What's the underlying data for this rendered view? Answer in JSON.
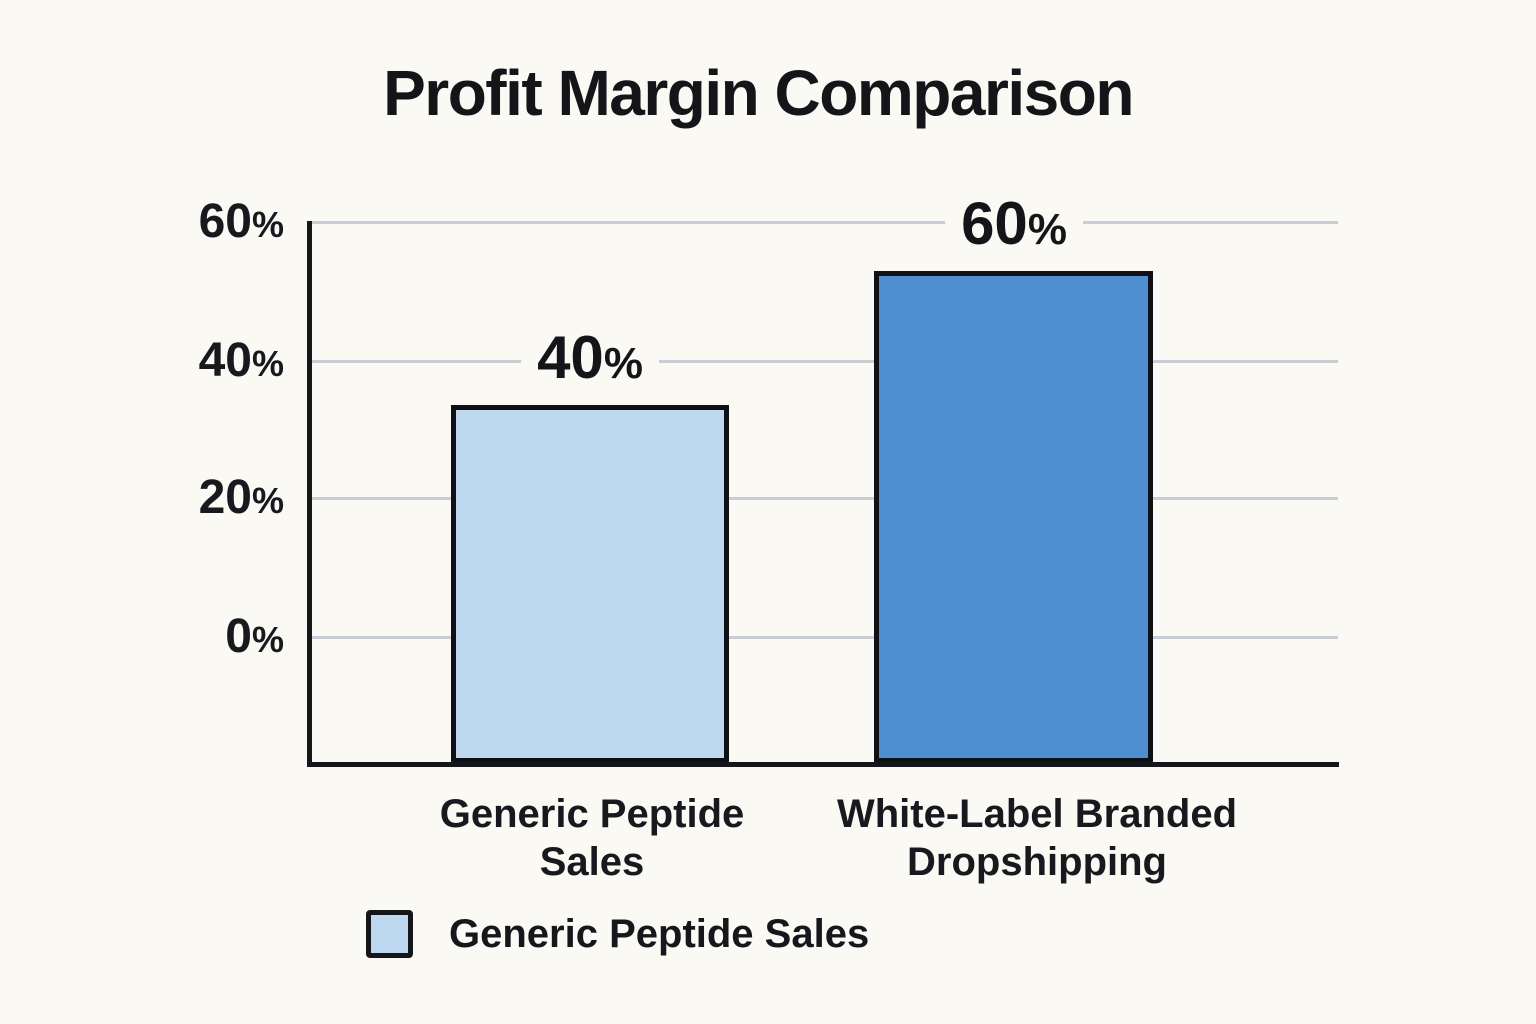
{
  "page": {
    "background_color": "#faf9f3"
  },
  "chart_data": {
    "type": "bar",
    "title": "Profit Margin Comparison",
    "categories": [
      "Generic Peptide Sales",
      "White-Label Branded Dropshipping"
    ],
    "values": [
      40,
      60
    ],
    "unit": "%",
    "bar_value_digits": [
      "40",
      "60"
    ],
    "xlabel": "",
    "ylabel": "",
    "ylim": [
      0,
      60
    ],
    "yticks": {
      "values": [
        60,
        40,
        20,
        0
      ],
      "digits": [
        "60",
        "40",
        "20",
        "0"
      ]
    },
    "grid": true,
    "legend": {
      "position": "bottom-left",
      "entries": [
        {
          "label": "Generic Peptide Sales",
          "swatch_color": "#bed9ef"
        }
      ]
    },
    "colors": {
      "bar_generic_peptide_sales": "#bed9ef",
      "bar_white_label_dropshipping": "#4e8fd0",
      "bar_outline": "#0f1116",
      "axis": "#15161a",
      "gridline": "#c9ced6",
      "text": "#16181b",
      "background": "#faf9f3"
    }
  }
}
